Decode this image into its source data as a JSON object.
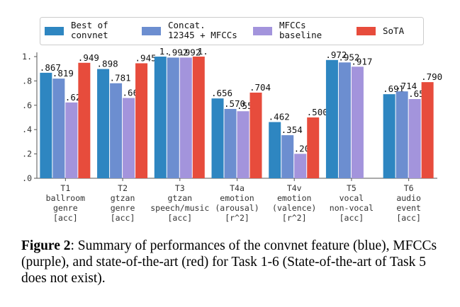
{
  "chart_data": {
    "type": "bar",
    "categories": [
      [
        "T1",
        "ballroom",
        "genre",
        "[acc]"
      ],
      [
        "T2",
        "gtzan",
        "genre",
        "[acc]"
      ],
      [
        "T3",
        "gtzan",
        "speech/music",
        "[acc]"
      ],
      [
        "T4a",
        "emotion",
        "(arousal)",
        "[r^2]"
      ],
      [
        "T4v",
        "emotion",
        "(valence)",
        "[r^2]"
      ],
      [
        "T5",
        "vocal",
        "non-vocal",
        "[acc]"
      ],
      [
        "T6",
        "audio",
        "event",
        "[acc]"
      ]
    ],
    "series": [
      {
        "name": "Best of\nconvnet",
        "color": "#2e86c1",
        "values": [
          0.867,
          0.898,
          1.0,
          0.656,
          0.462,
          0.972,
          0.691
        ],
        "labels": [
          ".867",
          ".898",
          "1.",
          ".656",
          ".462",
          ".972",
          ".691"
        ]
      },
      {
        "name": "Concat.\n12345 + MFCCs",
        "color": "#6c8ed0",
        "values": [
          0.819,
          0.781,
          0.992,
          0.57,
          0.354,
          0.952,
          0.714
        ],
        "labels": [
          ".819",
          ".781",
          ".992",
          ".570",
          ".354",
          ".952",
          ".714"
        ]
      },
      {
        "name": "MFCCs\nbaseline",
        "color": "#a394dc",
        "values": [
          0.623,
          0.66,
          0.992,
          0.551,
          0.201,
          0.917,
          0.651
        ],
        "labels": [
          ".623",
          ".660",
          ".992",
          ".551",
          ".201",
          ".917",
          ".651"
        ]
      },
      {
        "name": "SoTA",
        "color": "#e74c3c",
        "values": [
          0.949,
          0.945,
          1.0,
          0.704,
          0.5,
          null,
          0.79
        ],
        "labels": [
          ".949",
          ".945",
          "1.",
          ".704",
          ".500",
          null,
          ".790"
        ]
      }
    ],
    "yticks": [
      {
        "value": 0.0,
        "label": ".0"
      },
      {
        "value": 0.2,
        "label": ".2"
      },
      {
        "value": 0.4,
        "label": ".4"
      },
      {
        "value": 0.6,
        "label": ".6"
      },
      {
        "value": 0.8,
        "label": ".8"
      },
      {
        "value": 1.0,
        "label": "1."
      }
    ],
    "ylim": [
      0,
      1.0
    ],
    "legend_position": "top",
    "grid": false
  },
  "caption": {
    "label": "Figure 2",
    "text": ":  Summary of performances of the convnet feature (blue), MFCCs (purple), and state-of-the-art (red) for Task 1-6 (State-of-the-art of Task 5 does not exist)."
  }
}
